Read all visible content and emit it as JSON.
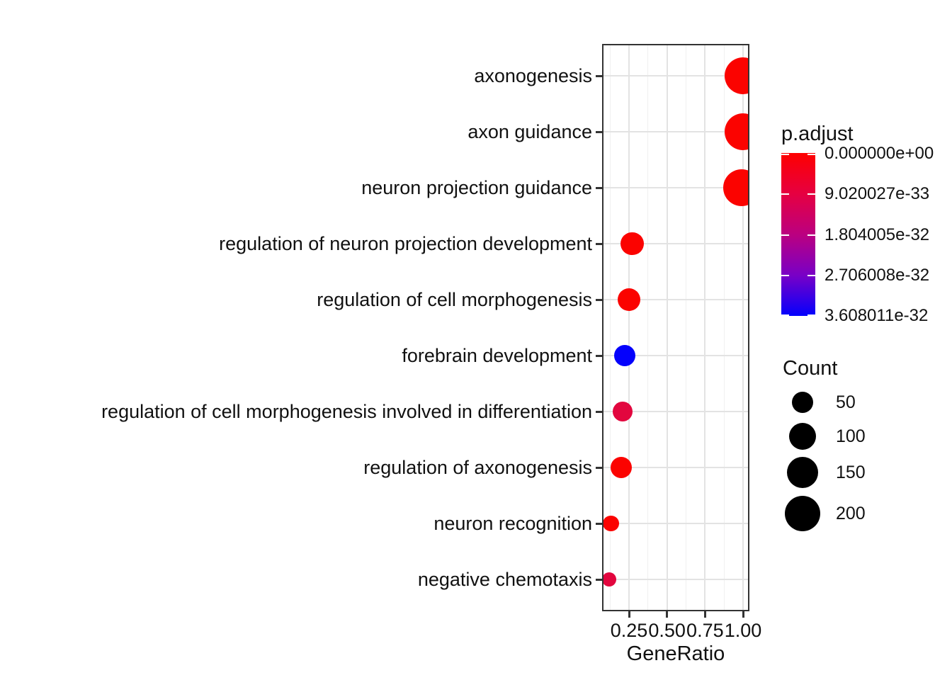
{
  "chart_data": {
    "type": "scatter",
    "title": "",
    "xlabel": "GeneRatio",
    "ylabel": "",
    "grid": true,
    "legend_position": "right",
    "xlim": [
      0.073,
      1.045
    ],
    "x_tick_labels": [
      "0.25",
      "0.50",
      "0.75",
      "1.00"
    ],
    "x_tick_values": [
      0.25,
      0.5,
      0.75,
      1.0
    ],
    "x_minor_values": [
      0.125,
      0.375,
      0.625,
      0.875
    ],
    "categories": [
      "axonogenesis",
      "axon guidance",
      "neuron projection guidance",
      "regulation of neuron projection development",
      "regulation of cell morphogenesis",
      "forebrain development",
      "regulation of cell morphogenesis involved in differentiation",
      "regulation of axonogenesis",
      "neuron recognition",
      "negative chemotaxis"
    ],
    "points": [
      {
        "term": "axonogenesis",
        "gene_ratio": 1.0,
        "count": 220,
        "p_adjust": 0,
        "color": "#FB0300"
      },
      {
        "term": "axon guidance",
        "gene_ratio": 1.0,
        "count": 220,
        "p_adjust": 0,
        "color": "#FB0300"
      },
      {
        "term": "neuron projection guidance",
        "gene_ratio": 0.99,
        "count": 220,
        "p_adjust": 0,
        "color": "#FB0300"
      },
      {
        "term": "regulation of neuron projection development",
        "gene_ratio": 0.27,
        "count": 65,
        "p_adjust": 0,
        "color": "#FB0300"
      },
      {
        "term": "regulation of cell morphogenesis",
        "gene_ratio": 0.25,
        "count": 60,
        "p_adjust": 0,
        "color": "#FB0300"
      },
      {
        "term": "forebrain development",
        "gene_ratio": 0.22,
        "count": 50,
        "p_adjust": 3.608011e-32,
        "color": "#0401FC"
      },
      {
        "term": "regulation of cell morphogenesis involved in differentiation",
        "gene_ratio": 0.21,
        "count": 40,
        "p_adjust": 4e-33,
        "color": "#E2063E"
      },
      {
        "term": "regulation of axonogenesis",
        "gene_ratio": 0.2,
        "count": 50,
        "p_adjust": 0,
        "color": "#FB0300"
      },
      {
        "term": "neuron recognition",
        "gene_ratio": 0.13,
        "count": 20,
        "p_adjust": 0,
        "color": "#FB0300"
      },
      {
        "term": "negative chemotaxis",
        "gene_ratio": 0.12,
        "count": 12,
        "p_adjust": 4e-33,
        "color": "#E2063E"
      }
    ],
    "legend_padjust": {
      "title": "p.adjust",
      "tick_labels": [
        "0.000000e+00",
        "9.020027e-33",
        "1.804005e-32",
        "2.706008e-32",
        "3.608011e-32"
      ],
      "gradient_stops": [
        "#FE0000",
        "#E60041",
        "#BB0080",
        "#7900C6",
        "#0400FD"
      ]
    },
    "legend_count": {
      "title": "Count",
      "values": [
        50,
        100,
        150,
        200
      ]
    }
  },
  "colors": {
    "panel_border": "#333333",
    "grid_major": "#E3E3E3",
    "grid_minor": "#F0F0F0",
    "tick": "#333333",
    "text": "#111111",
    "legend_dot": "#000000",
    "colorbar_tick": "#FFFFFF"
  }
}
